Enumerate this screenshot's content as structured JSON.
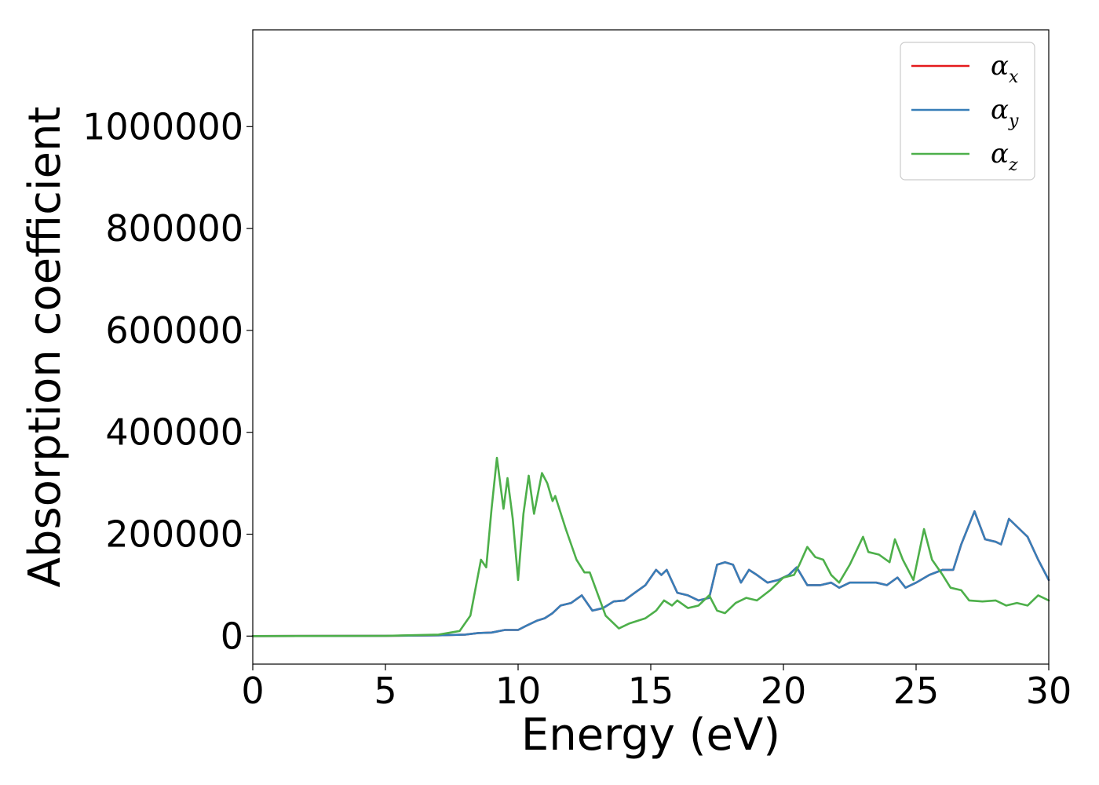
{
  "chart_data": {
    "type": "line",
    "title": "",
    "xlabel": "Energy (eV)",
    "ylabel": "Absorption coefficient",
    "xlim": [
      0,
      30
    ],
    "ylim": [
      -55000,
      1190000
    ],
    "x_ticks": [
      "0",
      "5",
      "10",
      "15",
      "20",
      "25",
      "30"
    ],
    "x_tick_values": [
      0,
      5,
      10,
      15,
      20,
      25,
      30
    ],
    "y_ticks": [
      "0",
      "200000",
      "400000",
      "600000",
      "800000",
      "1000000"
    ],
    "y_tick_values": [
      0,
      200000,
      400000,
      600000,
      800000,
      1000000
    ],
    "grid": false,
    "legend_position": "top-right",
    "series": [
      {
        "name_base": "α",
        "name_sub": "x",
        "color": "#e41a1c",
        "points": [
          [
            0,
            0
          ],
          [
            5,
            500
          ],
          [
            7,
            1500
          ],
          [
            8,
            3000
          ],
          [
            8.5,
            6000
          ],
          [
            9,
            7000
          ],
          [
            9.5,
            12000
          ],
          [
            10,
            12000
          ],
          [
            10.3,
            20000
          ],
          [
            10.7,
            30000
          ],
          [
            11,
            35000
          ],
          [
            11.3,
            45000
          ],
          [
            11.6,
            60000
          ],
          [
            12,
            65000
          ],
          [
            12.4,
            80000
          ],
          [
            12.8,
            50000
          ],
          [
            13.2,
            55000
          ],
          [
            13.6,
            68000
          ],
          [
            14,
            70000
          ],
          [
            14.4,
            85000
          ],
          [
            14.8,
            100000
          ],
          [
            15.2,
            130000
          ],
          [
            15.4,
            120000
          ],
          [
            15.6,
            130000
          ],
          [
            16,
            85000
          ],
          [
            16.4,
            80000
          ],
          [
            16.8,
            70000
          ],
          [
            17.2,
            75000
          ],
          [
            17.5,
            140000
          ],
          [
            17.8,
            145000
          ],
          [
            18.1,
            140000
          ],
          [
            18.4,
            105000
          ],
          [
            18.7,
            130000
          ],
          [
            19,
            120000
          ],
          [
            19.4,
            105000
          ],
          [
            19.8,
            110000
          ],
          [
            20.2,
            120000
          ],
          [
            20.5,
            135000
          ],
          [
            20.9,
            100000
          ],
          [
            21.4,
            100000
          ],
          [
            21.8,
            105000
          ],
          [
            22.1,
            95000
          ],
          [
            22.5,
            105000
          ],
          [
            23,
            105000
          ],
          [
            23.5,
            105000
          ],
          [
            23.9,
            100000
          ],
          [
            24.3,
            115000
          ],
          [
            24.6,
            95000
          ],
          [
            25,
            105000
          ],
          [
            25.5,
            120000
          ],
          [
            26,
            130000
          ],
          [
            26.4,
            130000
          ],
          [
            26.7,
            180000
          ],
          [
            27.2,
            245000
          ],
          [
            27.6,
            190000
          ],
          [
            28,
            185000
          ],
          [
            28.2,
            180000
          ],
          [
            28.5,
            230000
          ],
          [
            28.9,
            210000
          ],
          [
            29.2,
            195000
          ],
          [
            29.6,
            150000
          ],
          [
            30,
            110000
          ]
        ]
      },
      {
        "name_base": "α",
        "name_sub": "y",
        "color": "#377eb8",
        "points": [
          [
            0,
            0
          ],
          [
            5,
            500
          ],
          [
            7,
            1500
          ],
          [
            8,
            3000
          ],
          [
            8.5,
            6000
          ],
          [
            9,
            7000
          ],
          [
            9.5,
            12000
          ],
          [
            10,
            12000
          ],
          [
            10.3,
            20000
          ],
          [
            10.7,
            30000
          ],
          [
            11,
            35000
          ],
          [
            11.3,
            45000
          ],
          [
            11.6,
            60000
          ],
          [
            12,
            65000
          ],
          [
            12.4,
            80000
          ],
          [
            12.8,
            50000
          ],
          [
            13.2,
            55000
          ],
          [
            13.6,
            68000
          ],
          [
            14,
            70000
          ],
          [
            14.4,
            85000
          ],
          [
            14.8,
            100000
          ],
          [
            15.2,
            130000
          ],
          [
            15.4,
            120000
          ],
          [
            15.6,
            130000
          ],
          [
            16,
            85000
          ],
          [
            16.4,
            80000
          ],
          [
            16.8,
            70000
          ],
          [
            17.2,
            75000
          ],
          [
            17.5,
            140000
          ],
          [
            17.8,
            145000
          ],
          [
            18.1,
            140000
          ],
          [
            18.4,
            105000
          ],
          [
            18.7,
            130000
          ],
          [
            19,
            120000
          ],
          [
            19.4,
            105000
          ],
          [
            19.8,
            110000
          ],
          [
            20.2,
            120000
          ],
          [
            20.5,
            135000
          ],
          [
            20.9,
            100000
          ],
          [
            21.4,
            100000
          ],
          [
            21.8,
            105000
          ],
          [
            22.1,
            95000
          ],
          [
            22.5,
            105000
          ],
          [
            23,
            105000
          ],
          [
            23.5,
            105000
          ],
          [
            23.9,
            100000
          ],
          [
            24.3,
            115000
          ],
          [
            24.6,
            95000
          ],
          [
            25,
            105000
          ],
          [
            25.5,
            120000
          ],
          [
            26,
            130000
          ],
          [
            26.4,
            130000
          ],
          [
            26.7,
            180000
          ],
          [
            27.2,
            245000
          ],
          [
            27.6,
            190000
          ],
          [
            28,
            185000
          ],
          [
            28.2,
            180000
          ],
          [
            28.5,
            230000
          ],
          [
            28.9,
            210000
          ],
          [
            29.2,
            195000
          ],
          [
            29.6,
            150000
          ],
          [
            30,
            110000
          ]
        ]
      },
      {
        "name_base": "α",
        "name_sub": "z",
        "color": "#4daf4a",
        "points": [
          [
            0,
            0
          ],
          [
            5,
            500
          ],
          [
            7,
            3000
          ],
          [
            7.8,
            10000
          ],
          [
            8.2,
            40000
          ],
          [
            8.6,
            150000
          ],
          [
            8.8,
            135000
          ],
          [
            9,
            250000
          ],
          [
            9.2,
            350000
          ],
          [
            9.45,
            250000
          ],
          [
            9.6,
            310000
          ],
          [
            9.8,
            230000
          ],
          [
            10,
            110000
          ],
          [
            10.2,
            240000
          ],
          [
            10.4,
            315000
          ],
          [
            10.6,
            240000
          ],
          [
            10.9,
            320000
          ],
          [
            11.1,
            300000
          ],
          [
            11.3,
            265000
          ],
          [
            11.4,
            275000
          ],
          [
            11.8,
            210000
          ],
          [
            12.2,
            150000
          ],
          [
            12.5,
            125000
          ],
          [
            12.7,
            125000
          ],
          [
            13.3,
            40000
          ],
          [
            13.8,
            15000
          ],
          [
            14.2,
            25000
          ],
          [
            14.8,
            35000
          ],
          [
            15.2,
            50000
          ],
          [
            15.5,
            70000
          ],
          [
            15.8,
            60000
          ],
          [
            16,
            70000
          ],
          [
            16.4,
            55000
          ],
          [
            16.8,
            60000
          ],
          [
            17.2,
            80000
          ],
          [
            17.5,
            50000
          ],
          [
            17.8,
            45000
          ],
          [
            18.2,
            65000
          ],
          [
            18.6,
            75000
          ],
          [
            19,
            70000
          ],
          [
            19.5,
            90000
          ],
          [
            20,
            115000
          ],
          [
            20.4,
            120000
          ],
          [
            20.6,
            140000
          ],
          [
            20.9,
            175000
          ],
          [
            21.2,
            155000
          ],
          [
            21.5,
            150000
          ],
          [
            21.8,
            120000
          ],
          [
            22.1,
            105000
          ],
          [
            22.5,
            140000
          ],
          [
            23,
            195000
          ],
          [
            23.2,
            165000
          ],
          [
            23.6,
            160000
          ],
          [
            24,
            145000
          ],
          [
            24.2,
            190000
          ],
          [
            24.5,
            150000
          ],
          [
            24.9,
            110000
          ],
          [
            25.3,
            210000
          ],
          [
            25.6,
            150000
          ],
          [
            26,
            120000
          ],
          [
            26.3,
            95000
          ],
          [
            26.7,
            90000
          ],
          [
            27,
            70000
          ],
          [
            27.5,
            68000
          ],
          [
            28,
            70000
          ],
          [
            28.4,
            60000
          ],
          [
            28.8,
            65000
          ],
          [
            29.2,
            60000
          ],
          [
            29.6,
            80000
          ],
          [
            30,
            70000
          ]
        ]
      }
    ]
  }
}
